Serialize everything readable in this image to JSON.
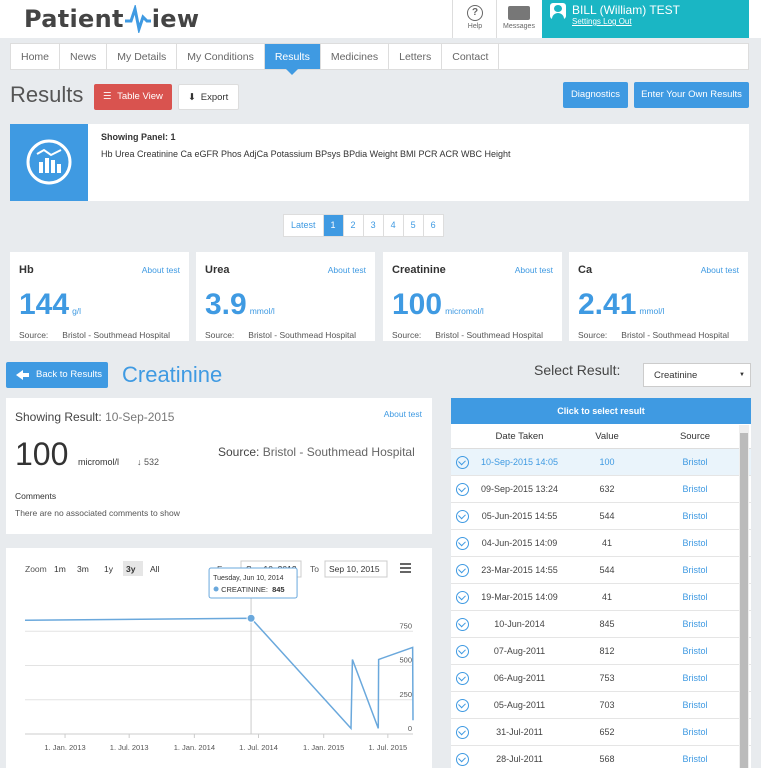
{
  "header": {
    "brand_a": "Patient",
    "brand_b": "iew",
    "help": "Help",
    "help_glyph": "?",
    "messages": "Messages",
    "user_name": "BILL (William) TEST",
    "settings": "Settings",
    "logout": "Log Out"
  },
  "nav": [
    "Home",
    "News",
    "My Details",
    "My Conditions",
    "Results",
    "Medicines",
    "Letters",
    "Contact"
  ],
  "nav_active": "Results",
  "results": {
    "title": "Results",
    "table_view": "Table View",
    "export": "Export",
    "diagnostics": "Diagnostics",
    "enter_results": "Enter Your Own Results"
  },
  "panel": {
    "title": "Showing Panel: 1",
    "tests": "Hb  Urea  Creatinine  Ca  eGFR  Phos  AdjCa  Potassium  BPsys  BPdia  Weight  BMI  PCR  ACR  WBC  Height"
  },
  "pagination": {
    "latest": "Latest",
    "pages": [
      "1",
      "2",
      "3",
      "4",
      "5",
      "6"
    ],
    "active": "1"
  },
  "cards": [
    {
      "name": "Hb",
      "about": "About test",
      "value": "144",
      "unit": "g/l",
      "source_label": "Source:",
      "source": "Bristol - Southmead Hospital"
    },
    {
      "name": "Urea",
      "about": "About test",
      "value": "3.9",
      "unit": "mmol/l",
      "source_label": "Source:",
      "source": "Bristol - Southmead Hospital"
    },
    {
      "name": "Creatinine",
      "about": "About test",
      "value": "100",
      "unit": "micromol/l",
      "source_label": "Source:",
      "source": "Bristol - Southmead Hospital"
    },
    {
      "name": "Ca",
      "about": "About test",
      "value": "2.41",
      "unit": "mmol/l",
      "source_label": "Source:",
      "source": "Bristol - Southmead Hospital"
    }
  ],
  "detail": {
    "back": "Back to Results",
    "title": "Creatinine",
    "select_label": "Select Result:",
    "select_value": "Creatinine",
    "showing_label": "Showing Result:",
    "showing_date": "10-Sep-2015",
    "about": "About test",
    "value": "100",
    "unit": "micromol/l",
    "prev": "532",
    "source_label": "Source:",
    "source": "Bristol - Southmead Hospital",
    "comments_title": "Comments",
    "comments": "There are no associated comments to show"
  },
  "chart": {
    "zoom_label": "Zoom",
    "zoom": [
      "1m",
      "3m",
      "1y",
      "3y",
      "All"
    ],
    "zoom_active": "3y",
    "from_label": "From",
    "from": "Sep 10, 2012",
    "to_label": "To",
    "to": "Sep 10, 2015",
    "tooltip_date": "Tuesday, Jun 10, 2014",
    "tooltip_series": "CREATININE:",
    "tooltip_value": "845"
  },
  "chart_data": {
    "type": "line",
    "series": [
      {
        "name": "CREATININE",
        "points": [
          [
            "2012-09-10",
            830
          ],
          [
            "2014-06-10",
            845
          ],
          [
            "2015-03-19",
            41
          ],
          [
            "2015-03-23",
            544
          ],
          [
            "2015-06-04",
            41
          ],
          [
            "2015-06-05",
            544
          ],
          [
            "2015-09-09",
            632
          ],
          [
            "2015-09-10",
            100
          ]
        ]
      }
    ],
    "x_ticks": [
      "1. Jan. 2013",
      "1. Jul. 2013",
      "1. Jan. 2014",
      "1. Jul. 2014",
      "1. Jan. 2015",
      "1. Jul. 2015"
    ],
    "y_ticks": [
      "0",
      "250",
      "500",
      "750"
    ],
    "ylim": [
      0,
      1000
    ]
  },
  "table": {
    "header": "Click to select result",
    "columns": [
      "Date Taken",
      "Value",
      "Source"
    ],
    "rows": [
      [
        "10-Sep-2015 14:05",
        "100",
        "Bristol"
      ],
      [
        "09-Sep-2015 13:24",
        "632",
        "Bristol"
      ],
      [
        "05-Jun-2015 14:55",
        "544",
        "Bristol"
      ],
      [
        "04-Jun-2015 14:09",
        "41",
        "Bristol"
      ],
      [
        "23-Mar-2015 14:55",
        "544",
        "Bristol"
      ],
      [
        "19-Mar-2015 14:09",
        "41",
        "Bristol"
      ],
      [
        "10-Jun-2014",
        "845",
        "Bristol"
      ],
      [
        "07-Aug-2011",
        "812",
        "Bristol"
      ],
      [
        "06-Aug-2011",
        "753",
        "Bristol"
      ],
      [
        "05-Aug-2011",
        "703",
        "Bristol"
      ],
      [
        "31-Jul-2011",
        "652",
        "Bristol"
      ],
      [
        "28-Jul-2011",
        "568",
        "Bristol"
      ]
    ]
  }
}
